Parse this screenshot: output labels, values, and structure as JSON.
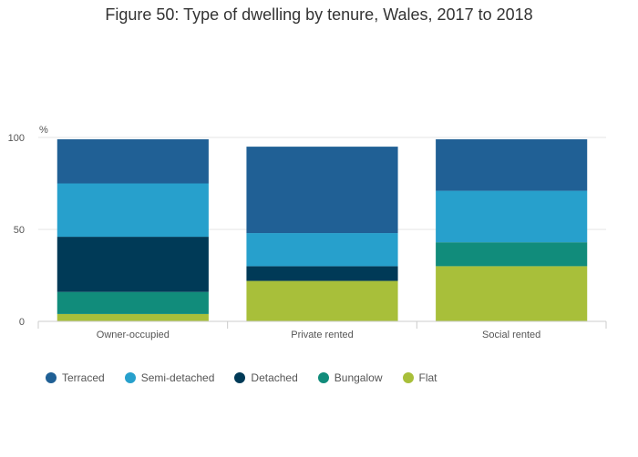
{
  "chart_data": {
    "type": "bar",
    "stacked": true,
    "title": "Figure 50: Type of dwelling by tenure, Wales, 2017 to 2018",
    "ylabel": "%",
    "xlabel": "",
    "ylim": [
      0,
      100
    ],
    "yticks": [
      0,
      50,
      100
    ],
    "grid": true,
    "legend_position": "bottom-left",
    "categories": [
      "Owner-occupied",
      "Private rented",
      "Social rented"
    ],
    "series": [
      {
        "name": "Flat",
        "color": "#a8bf3a",
        "values": [
          4,
          22,
          30
        ]
      },
      {
        "name": "Bungalow",
        "color": "#118c7b",
        "values": [
          12,
          0,
          13
        ]
      },
      {
        "name": "Detached",
        "color": "#003a57",
        "values": [
          30,
          8,
          0
        ]
      },
      {
        "name": "Semi-detached",
        "color": "#27a0cc",
        "values": [
          29,
          18,
          28
        ]
      },
      {
        "name": "Terraced",
        "color": "#206095",
        "values": [
          24,
          47,
          28
        ]
      }
    ]
  },
  "legend": [
    {
      "name": "Terraced",
      "color": "#206095"
    },
    {
      "name": "Semi-detached",
      "color": "#27a0cc"
    },
    {
      "name": "Detached",
      "color": "#003a57"
    },
    {
      "name": "Bungalow",
      "color": "#118c7b"
    },
    {
      "name": "Flat",
      "color": "#a8bf3a"
    }
  ]
}
